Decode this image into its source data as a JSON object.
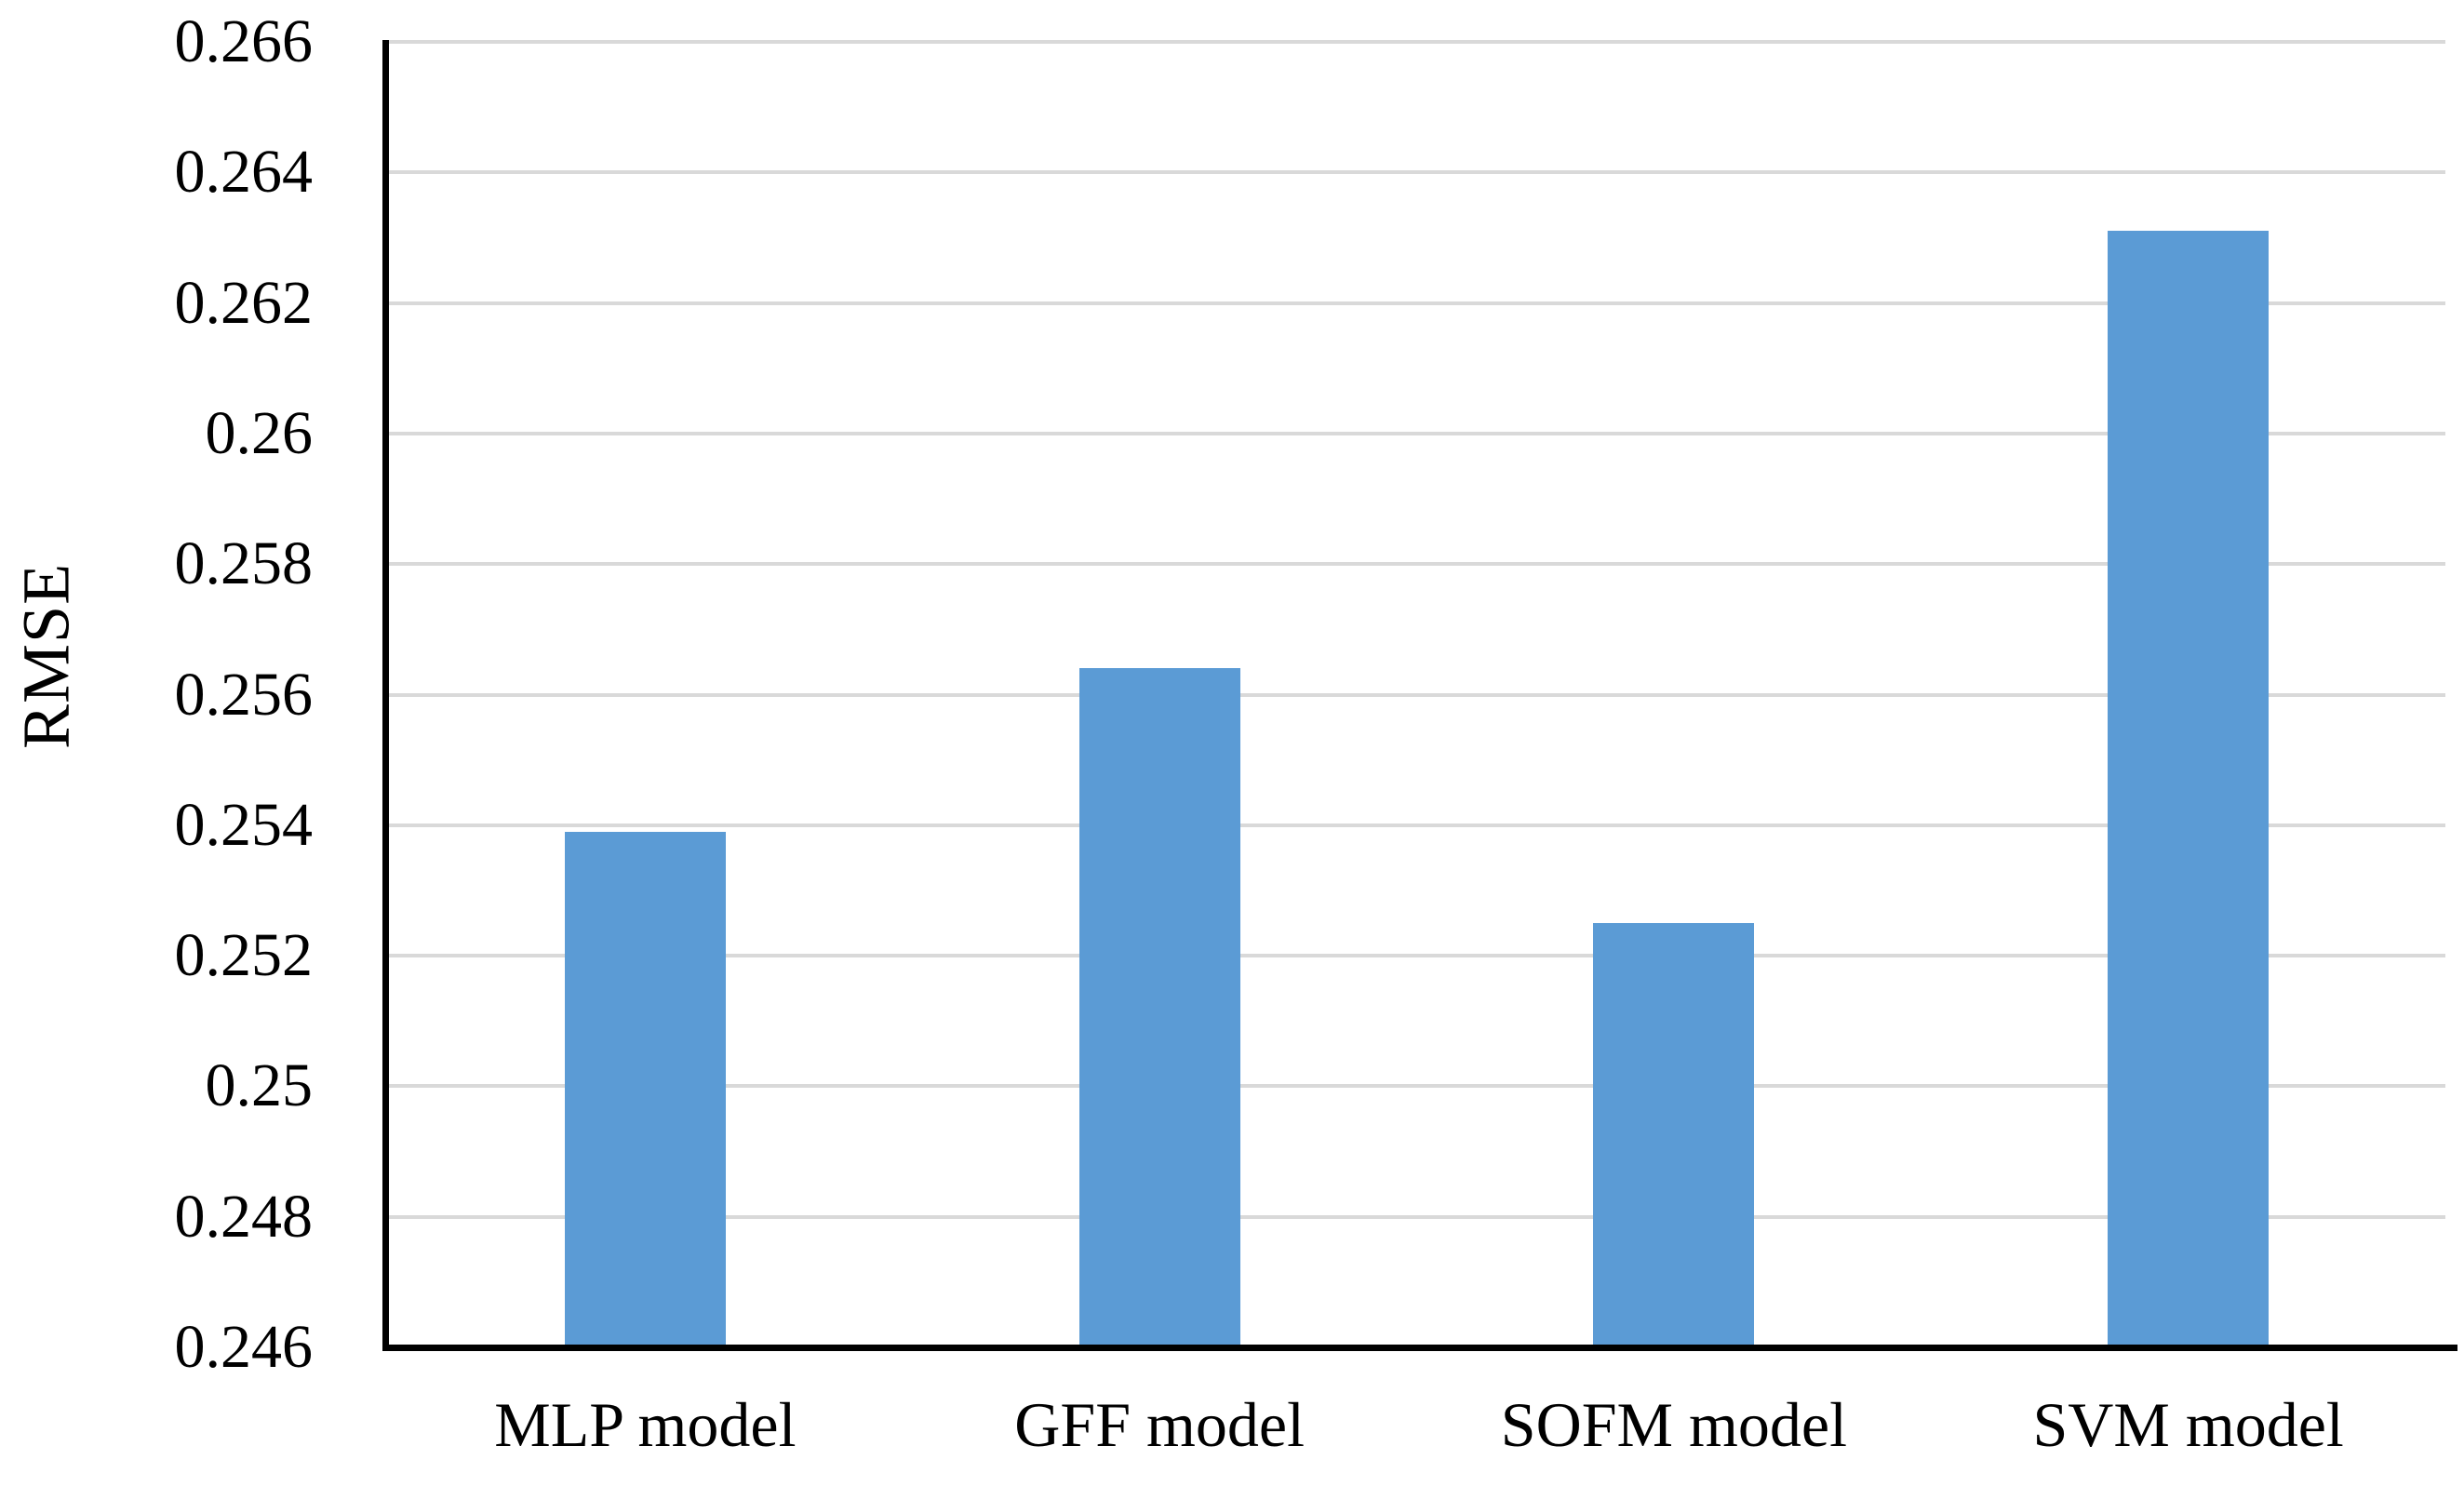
{
  "chart_data": {
    "type": "bar",
    "title": "",
    "categories": [
      "MLP model",
      "GFF model",
      "SOFM model",
      "SVM model"
    ],
    "values": [
      0.2539,
      0.2564,
      0.2525,
      0.2631
    ],
    "xlabel": "",
    "ylabel": "RMSE",
    "ylim": [
      0.246,
      0.266
    ],
    "ytick_step": 0.002,
    "ytick_labels_top_to_bottom": [
      "0.266",
      "0.264",
      "0.262",
      "0.26",
      "0.258",
      "0.256",
      "0.254",
      "0.252",
      "0.25",
      "0.248",
      "0.246"
    ],
    "grid": "horizontal",
    "legend_position": "none",
    "bar_color": "#5B9BD5",
    "gridline_color": "#D9D9D9",
    "axis_color": "#000000"
  }
}
